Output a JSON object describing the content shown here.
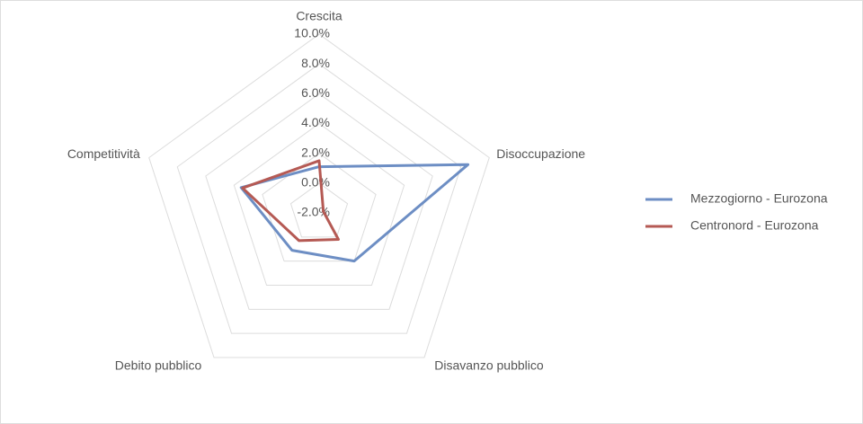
{
  "chart_data": {
    "type": "radar",
    "categories": [
      "Crescita",
      "Disoccupazione",
      "Disavanzo pubblico",
      "Debito pubblico",
      "Competitività"
    ],
    "series": [
      {
        "name": "Mezzogiorno - Eurozona",
        "color": "#6d8ec4",
        "values": [
          1.1,
          8.5,
          2.0,
          1.1,
          3.5
        ]
      },
      {
        "name": "Centronord - Eurozona",
        "color": "#b55a54",
        "values": [
          1.5,
          -1.7,
          0.2,
          0.3,
          3.4
        ]
      }
    ],
    "ylim": [
      -2,
      10
    ],
    "yticks": [
      {
        "value": -2,
        "label": "-2.0%"
      },
      {
        "value": 0,
        "label": "0.0%"
      },
      {
        "value": 2,
        "label": "2.0%"
      },
      {
        "value": 4,
        "label": "4.0%"
      },
      {
        "value": 6,
        "label": "6.0%"
      },
      {
        "value": 8,
        "label": "8.0%"
      },
      {
        "value": 10,
        "label": "10.0%"
      }
    ],
    "grid": true,
    "legend": "right"
  }
}
